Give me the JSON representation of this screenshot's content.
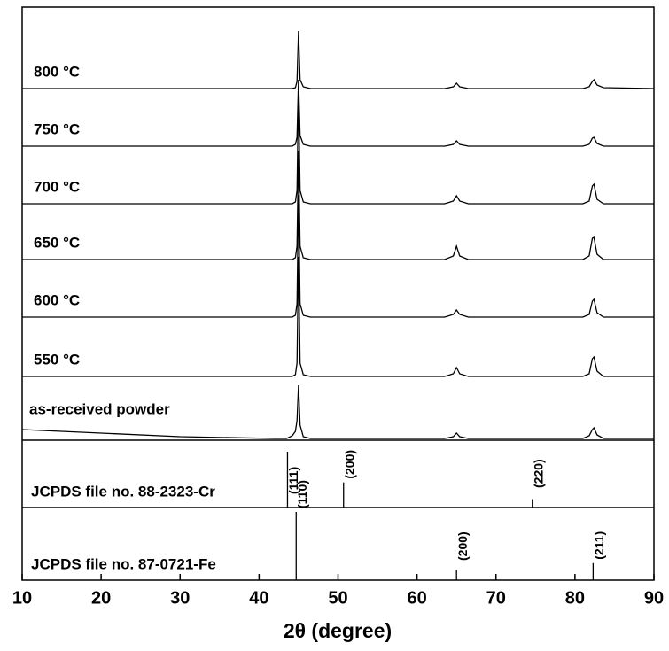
{
  "chart_data": {
    "type": "xrd",
    "xlabel": "2θ (degree)",
    "xlim": [
      10,
      90
    ],
    "xticks": [
      10,
      20,
      30,
      40,
      50,
      60,
      70,
      80,
      90
    ],
    "x": [
      10,
      30,
      42,
      43.5,
      44.2,
      44.6,
      44.8,
      45,
      45.2,
      45.6,
      46.5,
      55,
      63.5,
      64.6,
      65,
      65.4,
      66.5,
      75,
      81,
      81.8,
      82.2,
      82.4,
      82.8,
      83.6,
      90
    ],
    "series": [
      {
        "name": "800 °C",
        "color": "#000000",
        "values": [
          0,
          0,
          0,
          0,
          0,
          1,
          8,
          65,
          10,
          2,
          0,
          0,
          0,
          2,
          6,
          2,
          0,
          0,
          0,
          2,
          8,
          10,
          4,
          1,
          0
        ]
      },
      {
        "name": "750 °C",
        "color": "#000000",
        "values": [
          0,
          0,
          0,
          0,
          0,
          2,
          10,
          75,
          12,
          2,
          0,
          0,
          0,
          2,
          6,
          2,
          0,
          0,
          0,
          2,
          9,
          10,
          3,
          0,
          0
        ]
      },
      {
        "name": "700 °C",
        "color": "#000000",
        "values": [
          0,
          0,
          0,
          0,
          0,
          2,
          15,
          125,
          15,
          2,
          0,
          0,
          0,
          3,
          9,
          3,
          0,
          0,
          0,
          3,
          20,
          22,
          5,
          0,
          0
        ]
      },
      {
        "name": "650 °C",
        "color": "#000000",
        "values": [
          0,
          0,
          0,
          0,
          0,
          2,
          15,
          123,
          15,
          2,
          0,
          0,
          0,
          4,
          15,
          4,
          0,
          0,
          0,
          4,
          24,
          25,
          6,
          0,
          0
        ]
      },
      {
        "name": "600 °C",
        "color": "#000000",
        "values": [
          0,
          0,
          0,
          0,
          0,
          2,
          15,
          138,
          15,
          2,
          0,
          0,
          0,
          3,
          8,
          3,
          0,
          0,
          0,
          3,
          18,
          20,
          5,
          0,
          0
        ]
      },
      {
        "name": "550 °C",
        "color": "#000000",
        "values": [
          0,
          0,
          0,
          0,
          0,
          2,
          15,
          135,
          15,
          2,
          0,
          0,
          0,
          3,
          10,
          3,
          0,
          0,
          0,
          3,
          20,
          22,
          6,
          0,
          0
        ]
      },
      {
        "name": "as-received powder",
        "color": "#000000",
        "values": [
          10,
          2,
          0,
          0,
          3,
          8,
          20,
          60,
          15,
          2,
          0,
          0,
          0,
          2,
          6,
          2,
          0,
          0,
          0,
          3,
          10,
          12,
          4,
          0,
          0
        ]
      }
    ],
    "references": [
      {
        "name": "JCPDS file no. 88-2323-Cr",
        "peaks": [
          {
            "x": 43.6,
            "intensity": 100,
            "label": "(111)"
          },
          {
            "x": 50.7,
            "intensity": 45,
            "label": "(200)"
          },
          {
            "x": 74.6,
            "intensity": 15,
            "label": "(220)"
          }
        ]
      },
      {
        "name": "JCPDS file no. 87-0721-Fe",
        "peaks": [
          {
            "x": 44.7,
            "intensity": 100,
            "label": "(110)"
          },
          {
            "x": 65.0,
            "intensity": 15,
            "label": "(200)"
          },
          {
            "x": 82.3,
            "intensity": 25,
            "label": "(211)"
          }
        ]
      }
    ]
  }
}
